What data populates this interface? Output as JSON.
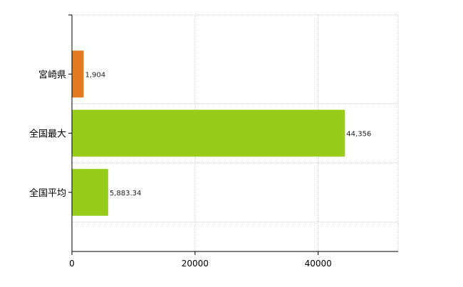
{
  "chart_data": {
    "type": "bar",
    "orientation": "horizontal",
    "categories": [
      "宮崎県",
      "全国最大",
      "全国平均"
    ],
    "values": [
      1904,
      44356,
      5883.34
    ],
    "value_labels": [
      "1,904",
      "44,356",
      "5,883.34"
    ],
    "bar_colors": [
      "#e07b20",
      "#99cc1a",
      "#99cc1a"
    ],
    "xlim": [
      0,
      53000
    ],
    "x_ticks": [
      0,
      20000,
      40000
    ],
    "x_tick_labels": [
      "0",
      "20000",
      "40000"
    ],
    "grid": true,
    "legend": "none"
  }
}
